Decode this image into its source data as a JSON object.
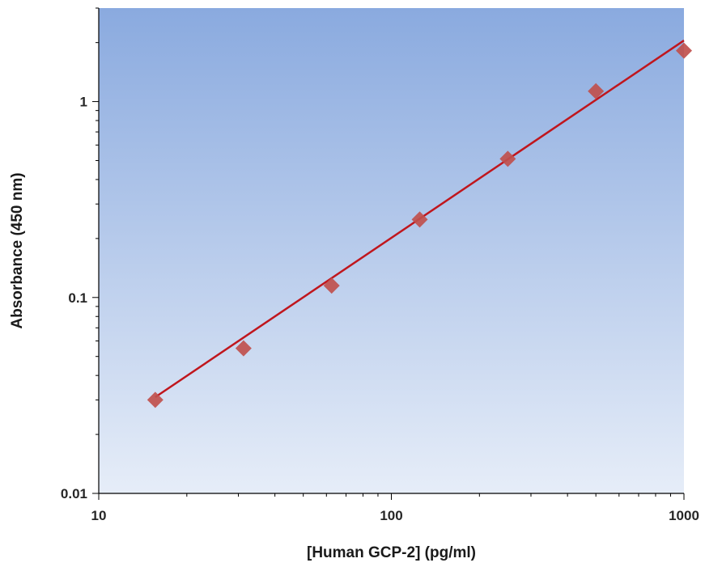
{
  "chart_data": {
    "type": "scatter",
    "xlabel": "[Human GCP-2] (pg/ml)",
    "ylabel": "Absorbance (450 nm)",
    "xscale": "log",
    "yscale": "log",
    "xlim": [
      10,
      1000
    ],
    "ylim": [
      0.01,
      3
    ],
    "x_ticks": [
      10,
      100,
      1000
    ],
    "x_tick_labels": [
      "10",
      "100",
      "1000"
    ],
    "y_ticks": [
      0.01,
      0.1,
      1
    ],
    "y_tick_labels": [
      "0.01",
      "0.1",
      "1"
    ],
    "grid": false,
    "series": [
      {
        "marker": "diamond",
        "color": "#c0504d",
        "x": [
          15.6,
          31.25,
          62.5,
          125,
          250,
          500,
          1000
        ],
        "y": [
          0.03,
          0.055,
          0.115,
          0.25,
          0.51,
          1.13,
          1.82
        ]
      }
    ],
    "fit_line": {
      "color": "#c0161d",
      "x": [
        15.6,
        1000
      ],
      "y": [
        0.031,
        2.05
      ]
    },
    "background_gradient": [
      "#8aaadf",
      "#e6edf8"
    ]
  }
}
